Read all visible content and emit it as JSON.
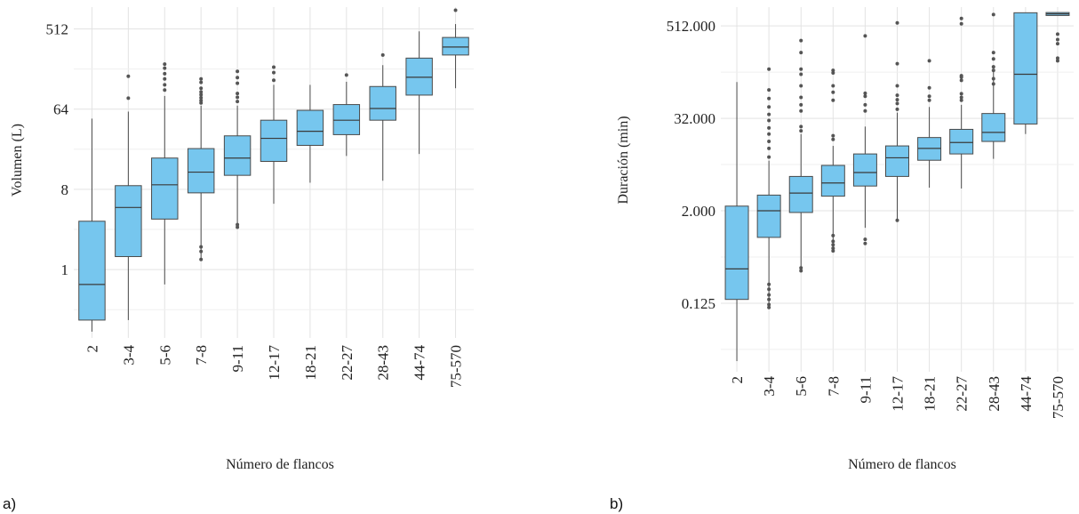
{
  "chart_data": [
    {
      "type": "box",
      "panel_label": "a)",
      "xlabel": "Número de flancos",
      "ylabel": "Volumen (L)",
      "y_scale": "log2",
      "ylim": [
        0.17,
        900
      ],
      "yticks": [
        {
          "value": 1,
          "label": "1"
        },
        {
          "value": 8,
          "label": "8"
        },
        {
          "value": 64,
          "label": "64"
        },
        {
          "value": 512,
          "label": "512"
        }
      ],
      "grid": true,
      "fill_color": "#76c6ee",
      "outline_color": "#4a4a4a",
      "categories": [
        "2",
        "3-4",
        "5-6",
        "7-8",
        "9-11",
        "12-17",
        "18-21",
        "22-27",
        "28-43",
        "44-74",
        "75-570"
      ],
      "boxes": [
        {
          "whisker_low": 0.2,
          "q1": 0.27,
          "median": 0.68,
          "q3": 3.5,
          "whisker_high": 50,
          "outliers": []
        },
        {
          "whisker_low": 0.27,
          "q1": 1.4,
          "median": 5.0,
          "q3": 8.8,
          "whisker_high": 60,
          "outliers": [
            85,
            150
          ]
        },
        {
          "whisker_low": 0.68,
          "q1": 3.7,
          "median": 9.0,
          "q3": 18,
          "whisker_high": 90,
          "outliers": [
            105,
            120,
            140,
            160,
            185,
            205
          ]
        },
        {
          "whisker_low": 1.3,
          "q1": 7.3,
          "median": 12.5,
          "q3": 23,
          "whisker_high": 70,
          "outliers": [
            1.3,
            1.6,
            1.8,
            75,
            80,
            86,
            93,
            100,
            110,
            128,
            140
          ]
        },
        {
          "whisker_low": 3.0,
          "q1": 11.5,
          "median": 18,
          "q3": 32,
          "whisker_high": 70,
          "outliers": [
            3.0,
            3.2,
            78,
            87,
            96,
            125,
            145,
            170
          ]
        },
        {
          "whisker_low": 5.5,
          "q1": 16.5,
          "median": 30,
          "q3": 48,
          "whisker_high": 120,
          "outliers": [
            135,
            165,
            190
          ]
        },
        {
          "whisker_low": 9.5,
          "q1": 25,
          "median": 36,
          "q3": 62,
          "whisker_high": 120,
          "outliers": []
        },
        {
          "whisker_low": 19,
          "q1": 33,
          "median": 48,
          "q3": 72,
          "whisker_high": 130,
          "outliers": [
            155
          ]
        },
        {
          "whisker_low": 10,
          "q1": 48,
          "median": 65,
          "q3": 115,
          "whisker_high": 200,
          "outliers": [
            260
          ]
        },
        {
          "whisker_low": 20,
          "q1": 92,
          "median": 146,
          "q3": 240,
          "whisker_high": 480,
          "outliers": []
        },
        {
          "whisker_low": 110,
          "q1": 260,
          "median": 320,
          "q3": 410,
          "whisker_high": 580,
          "outliers": [
            830
          ]
        }
      ]
    },
    {
      "type": "box",
      "panel_label": "b)",
      "xlabel": "Número de flancos",
      "ylabel": "Duración (min)",
      "y_scale": "log2",
      "ylim": [
        0.016,
        900
      ],
      "yticks": [
        {
          "value": 0.125,
          "label": "0.125"
        },
        {
          "value": 2,
          "label": "2.000"
        },
        {
          "value": 32,
          "label": "32.000"
        },
        {
          "value": 512,
          "label": "512.000"
        }
      ],
      "grid": true,
      "fill_color": "#76c6ee",
      "outline_color": "#4a4a4a",
      "categories": [
        "2",
        "3-4",
        "5-6",
        "7-8",
        "9-11",
        "12-17",
        "18-21",
        "22-27",
        "28-43",
        "44-74",
        "75-570"
      ],
      "boxes": [
        {
          "whisker_low": 0.022,
          "q1": 0.14,
          "median": 0.35,
          "q3": 2.3,
          "whisker_high": 95,
          "outliers": []
        },
        {
          "whisker_low": 0.11,
          "q1": 0.9,
          "median": 2.0,
          "q3": 3.2,
          "whisker_high": 9,
          "outliers": [
            0.11,
            0.12,
            0.14,
            0.16,
            0.19,
            0.22,
            10,
            13,
            16,
            20,
            24,
            30,
            36,
            45,
            58,
            75,
            140
          ]
        },
        {
          "whisker_low": 0.35,
          "q1": 1.9,
          "median": 3.4,
          "q3": 5.6,
          "whisker_high": 20,
          "outliers": [
            0.33,
            0.36,
            22,
            25,
            40,
            48,
            60,
            85,
            120,
            140,
            230,
            330
          ]
        },
        {
          "whisker_low": 0.6,
          "q1": 3.1,
          "median": 4.6,
          "q3": 7.8,
          "whisker_high": 14,
          "outliers": [
            0.6,
            0.65,
            0.72,
            0.8,
            0.95,
            17,
            19,
            55,
            70,
            85,
            125,
            135
          ]
        },
        {
          "whisker_low": 1.2,
          "q1": 4.2,
          "median": 6.3,
          "q3": 11,
          "whisker_high": 25,
          "outliers": [
            0.75,
            0.85,
            40,
            48,
            62,
            68,
            380
          ]
        },
        {
          "whisker_low": 1.5,
          "q1": 5.6,
          "median": 9.8,
          "q3": 14,
          "whisker_high": 38,
          "outliers": [
            1.5,
            42,
            50,
            56,
            64,
            85,
            165,
            560
          ]
        },
        {
          "whisker_low": 4.0,
          "q1": 9.1,
          "median": 13,
          "q3": 18,
          "whisker_high": 45,
          "outliers": [
            55,
            62,
            80,
            180
          ]
        },
        {
          "whisker_low": 3.9,
          "q1": 11,
          "median": 15.5,
          "q3": 23,
          "whisker_high": 48,
          "outliers": [
            55,
            60,
            67,
            100,
            110,
            115,
            545,
            640
          ]
        },
        {
          "whisker_low": 9.5,
          "q1": 16,
          "median": 21,
          "q3": 37,
          "whisker_high": 140,
          "outliers": [
            90,
            105,
            135,
            150,
            190,
            230,
            720
          ]
        },
        {
          "whisker_low": 20,
          "q1": 27,
          "median": 120,
          "q3": 760,
          "whisker_high": 760,
          "outliers": []
        },
        {
          "whisker_low": 700,
          "q1": 700,
          "median": 735,
          "q3": 765,
          "whisker_high": 765,
          "outliers": [
            180,
            195,
            300,
            340,
            400
          ]
        }
      ]
    }
  ]
}
